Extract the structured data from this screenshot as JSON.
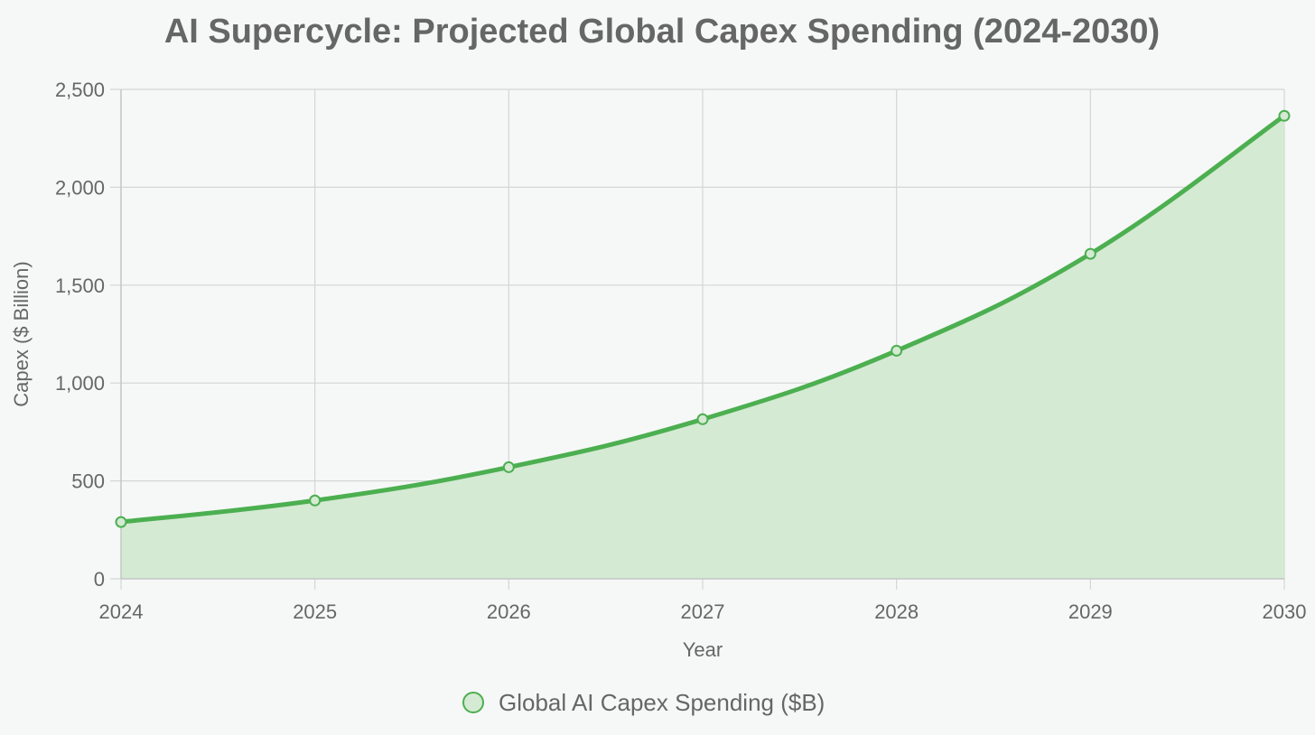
{
  "chart_data": {
    "type": "line",
    "title": "AI Supercycle: Projected Global Capex Spending (2024-2030)",
    "xlabel": "Year",
    "ylabel": "Capex ($ Billion)",
    "categories": [
      "2024",
      "2025",
      "2026",
      "2027",
      "2028",
      "2029",
      "2030"
    ],
    "series": [
      {
        "name": "Global AI Capex Spending ($B)",
        "values": [
          290,
          400,
          570,
          815,
          1165,
          1660,
          2365
        ],
        "color": "#4caf50",
        "fill": "#d4ead3",
        "area": true
      }
    ],
    "ylim": [
      0,
      2500
    ],
    "yticks": [
      0,
      500,
      1000,
      1500,
      2000,
      2500
    ],
    "ytick_labels": [
      "0",
      "500",
      "1,000",
      "1,500",
      "2,000",
      "2,500"
    ],
    "grid": true,
    "legend": "bottom-center"
  }
}
